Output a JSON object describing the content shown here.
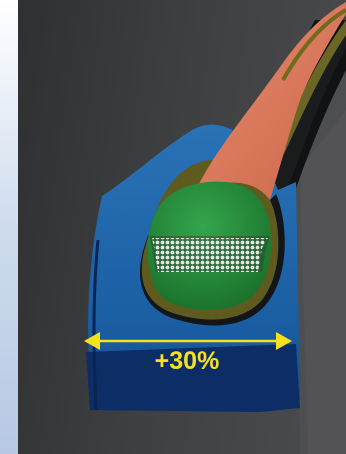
{
  "image": {
    "subject": "tire-bead-cross-section",
    "colors": {
      "background_gray": "#3d3e40",
      "sidebar_blue": "#c9d6ea",
      "rubber_blue": "#1d63a6",
      "rubber_dark_blue": "#0d2d66",
      "apex_orange": "#d87355",
      "bead_green": "#23883a",
      "ply_olive": "#6f6b1d",
      "accent_yellow": "#f7e11b"
    }
  },
  "dimension": {
    "label": "+30%",
    "change_percent": 30
  }
}
